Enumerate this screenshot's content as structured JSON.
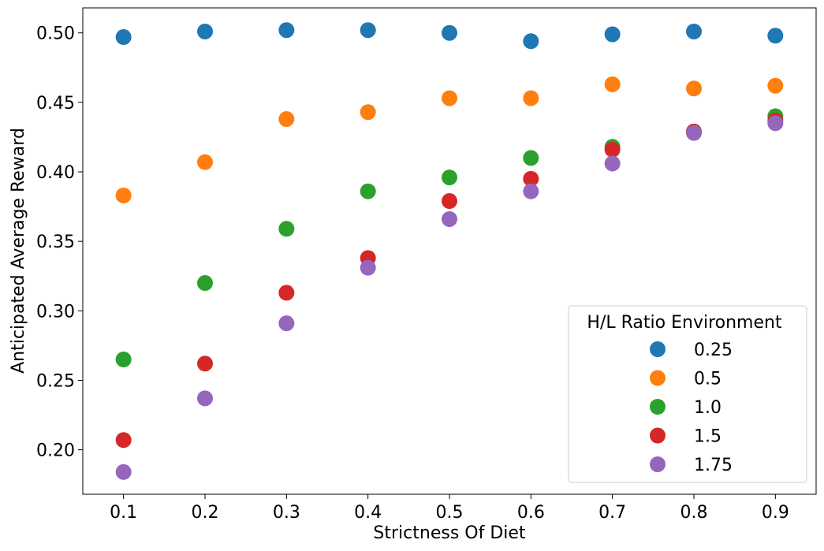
{
  "chart_data": {
    "type": "scatter",
    "title": "",
    "xlabel": "Strictness Of Diet",
    "ylabel": "Anticipated Average Reward",
    "xlim": [
      0.05,
      0.95
    ],
    "ylim": [
      0.168,
      0.518
    ],
    "x_ticks": [
      "0.1",
      "0.2",
      "0.3",
      "0.4",
      "0.5",
      "0.6",
      "0.7",
      "0.8",
      "0.9"
    ],
    "y_ticks": [
      "0.20",
      "0.25",
      "0.30",
      "0.35",
      "0.40",
      "0.45",
      "0.50"
    ],
    "grid": false,
    "legend": {
      "title": "H/L Ratio Environment",
      "placement": "lower-right"
    },
    "x": [
      0.1,
      0.2,
      0.3,
      0.4,
      0.5,
      0.6,
      0.7,
      0.8,
      0.9
    ],
    "series": [
      {
        "name": "0.25",
        "color": "#1f77b4",
        "values": [
          0.497,
          0.501,
          0.502,
          0.502,
          0.5,
          0.494,
          0.499,
          0.501,
          0.498
        ]
      },
      {
        "name": "0.5",
        "color": "#ff7f0e",
        "values": [
          0.383,
          0.407,
          0.438,
          0.443,
          0.453,
          0.453,
          0.463,
          0.46,
          0.462
        ]
      },
      {
        "name": "1.0",
        "color": "#2ca02c",
        "values": [
          0.265,
          0.32,
          0.359,
          0.386,
          0.396,
          0.41,
          0.418,
          0.429,
          0.44
        ]
      },
      {
        "name": "1.5",
        "color": "#d62728",
        "values": [
          0.207,
          0.262,
          0.313,
          0.338,
          0.379,
          0.395,
          0.416,
          0.429,
          0.437
        ]
      },
      {
        "name": "1.75",
        "color": "#9467bd",
        "values": [
          0.184,
          0.237,
          0.291,
          0.331,
          0.366,
          0.386,
          0.406,
          0.428,
          0.435
        ]
      }
    ]
  }
}
